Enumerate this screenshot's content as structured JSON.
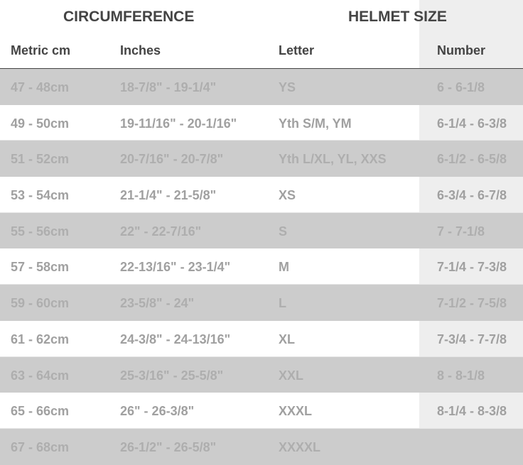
{
  "headers": {
    "group_circumference": "CIRCUMFERENCE",
    "group_helmet_size": "HELMET SIZE",
    "columns": [
      "Metric cm",
      "Inches",
      "Letter",
      "Number"
    ]
  },
  "rows": [
    [
      "47 - 48cm",
      "18-7/8\" - 19-1/4\"",
      "YS",
      "6 - 6-1/8"
    ],
    [
      "49 - 50cm",
      "19-11/16\" - 20-1/16\"",
      "Yth S/M, YM",
      "6-1/4 - 6-3/8"
    ],
    [
      "51 - 52cm",
      "20-7/16\" - 20-7/8\"",
      "Yth L/XL, YL, XXS",
      "6-1/2 - 6-5/8"
    ],
    [
      "53 - 54cm",
      "21-1/4\" - 21-5/8\"",
      "XS",
      "6-3/4 - 6-7/8"
    ],
    [
      "55 - 56cm",
      "22\" - 22-7/16\"",
      "S",
      "7 - 7-1/8"
    ],
    [
      "57 - 58cm",
      "22-13/16\" - 23-1/4\"",
      "M",
      "7-1/4 - 7-3/8"
    ],
    [
      "59 - 60cm",
      "23-5/8\" - 24\"",
      "L",
      "7-1/2 - 7-5/8"
    ],
    [
      "61 - 62cm",
      "24-3/8\" - 24-13/16\"",
      "XL",
      "7-3/4 - 7-7/8"
    ],
    [
      "63 - 64cm",
      "25-3/16\" - 25-5/8\"",
      "XXL",
      "8 - 8-1/8"
    ],
    [
      "65 - 66cm",
      "26\" - 26-3/8\"",
      "XXXL",
      "8-1/4 - 8-3/8"
    ],
    [
      "67 - 68cm",
      "26-1/2\" - 26-5/8\"",
      "XXXXL",
      ""
    ]
  ]
}
